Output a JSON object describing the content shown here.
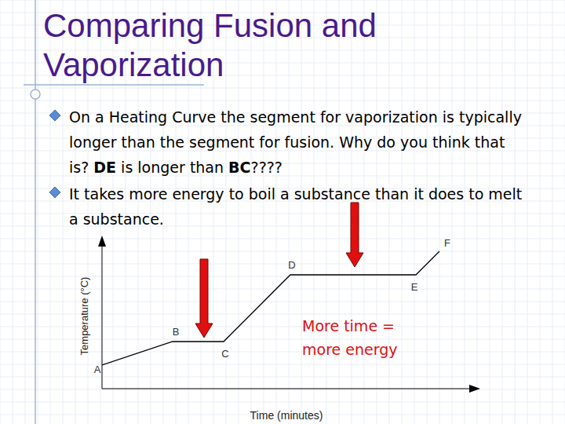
{
  "chart_data": {
    "type": "line",
    "title": "Comparing Fusion and Vaporization",
    "bullets": [
      [
        "On a Heating Curve the segment for vaporization is typically longer than the segment for fusion. Why do you think that is? ",
        "DE",
        " is longer than ",
        "BC",
        "????"
      ],
      [
        "It takes more energy to boil a substance than it does to melt a substance."
      ]
    ],
    "x_label": "Time (minutes)",
    "y_label": "Temperature (°C)",
    "x": [
      0,
      9,
      15.5,
      24,
      40,
      43
    ],
    "values": [
      3,
      6,
      6,
      14.5,
      14.5,
      17.5
    ],
    "labels": [
      "A",
      "B",
      "C",
      "D",
      "E",
      "F"
    ],
    "xlim": [
      0,
      47
    ],
    "ylim": [
      0,
      18.5
    ],
    "tick_labels": false,
    "color": "#000000",
    "annotations": [
      [
        "More time =",
        "more energy"
      ]
    ],
    "grid": false
  }
}
